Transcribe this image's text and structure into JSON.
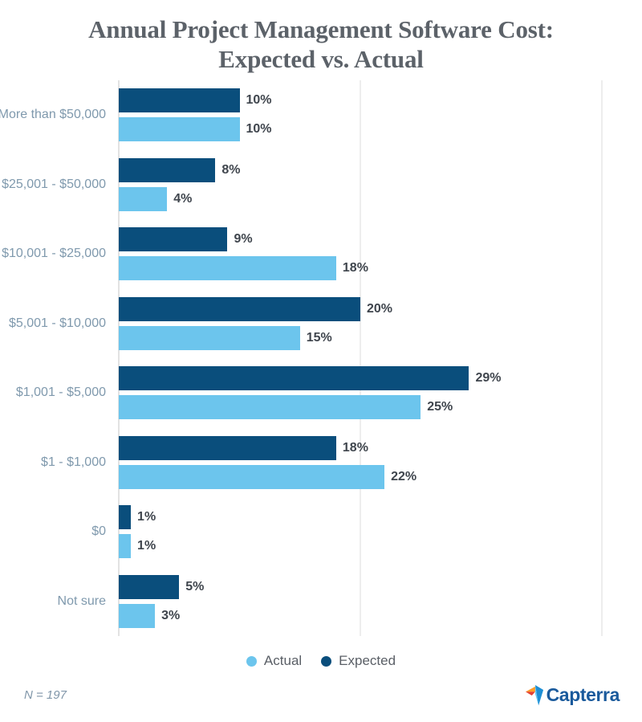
{
  "title": {
    "line1": "Annual Project Management Software Cost:",
    "line2": "Expected vs. Actual"
  },
  "chart_data": {
    "type": "bar",
    "orientation": "horizontal",
    "title": "Annual Project Management Software Cost: Expected vs. Actual",
    "xlabel": "",
    "ylabel": "",
    "xlim": [
      0,
      40
    ],
    "gridlines_pct": [
      0,
      20,
      40
    ],
    "grid": true,
    "value_suffix": "%",
    "categories": [
      "More than $50,000",
      "$25,001 - $50,000",
      "$10,001 - $25,000",
      "$5,001 - $10,000",
      "$1,001 - $5,000",
      "$1 - $1,000",
      "$0",
      "Not sure"
    ],
    "series": [
      {
        "name": "Expected",
        "color": "#0a4e7c",
        "values": [
          10,
          8,
          9,
          20,
          29,
          18,
          1,
          5
        ]
      },
      {
        "name": "Actual",
        "color": "#6cc5ed",
        "values": [
          10,
          4,
          18,
          15,
          25,
          22,
          1,
          3
        ]
      }
    ],
    "legend_position": "bottom",
    "legend": [
      {
        "label": "Actual",
        "color": "#6cc5ed"
      },
      {
        "label": "Expected",
        "color": "#0a4e7c"
      }
    ]
  },
  "footer": {
    "sample_size": "N = 197",
    "brand": "Capterra"
  },
  "colors": {
    "title_text": "#5c6269",
    "category_label": "#7f99ad",
    "value_label": "#3f454d",
    "legend_text": "#5a5f66",
    "gridline": "#ededed",
    "sample_text": "#8096a9",
    "capterra_blue_text": "#1a5a9c",
    "capterra_orange": "#ff9d28",
    "capterra_red": "#e23f33",
    "capterra_blue": "#1e8fd5",
    "capterra_light_blue": "#68c9f4"
  }
}
